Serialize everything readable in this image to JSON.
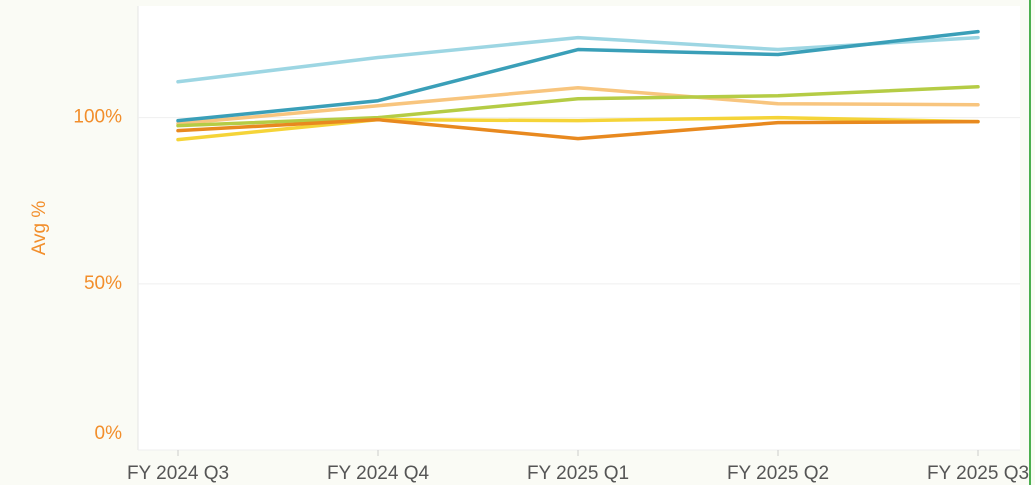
{
  "chart_data": {
    "type": "line",
    "y_label": "Avg %",
    "categories": [
      "FY 2024 Q3",
      "FY 2024 Q4",
      "FY 2025 Q1",
      "FY 2025 Q2",
      "FY 2025 Q3"
    ],
    "series": [
      {
        "color": "#9dd6e3",
        "values": [
          110.8,
          118.1,
          124.1,
          120.5,
          124.1
        ]
      },
      {
        "color": "#f8c57e",
        "values": [
          98.2,
          103.6,
          109.0,
          104.2,
          103.9
        ]
      },
      {
        "color": "#b5cc45",
        "values": [
          97.6,
          100,
          105.7,
          106.6,
          109.3
        ]
      },
      {
        "color": "#f5d438",
        "values": [
          93.4,
          99.4,
          99.1,
          100,
          98.8
        ]
      },
      {
        "color": "#e8891f",
        "values": [
          96.1,
          99.4,
          93.7,
          98.5,
          98.8
        ]
      },
      {
        "color": "#3a9fb8",
        "values": [
          99.1,
          105.1,
          120.5,
          119.0,
          125.9
        ]
      }
    ],
    "ylim": [
      0,
      133
    ],
    "yticks": [
      {
        "value": 0,
        "label": "0%"
      },
      {
        "value": 50,
        "label": "50%"
      },
      {
        "value": 100,
        "label": "100%"
      }
    ],
    "grid": true
  }
}
